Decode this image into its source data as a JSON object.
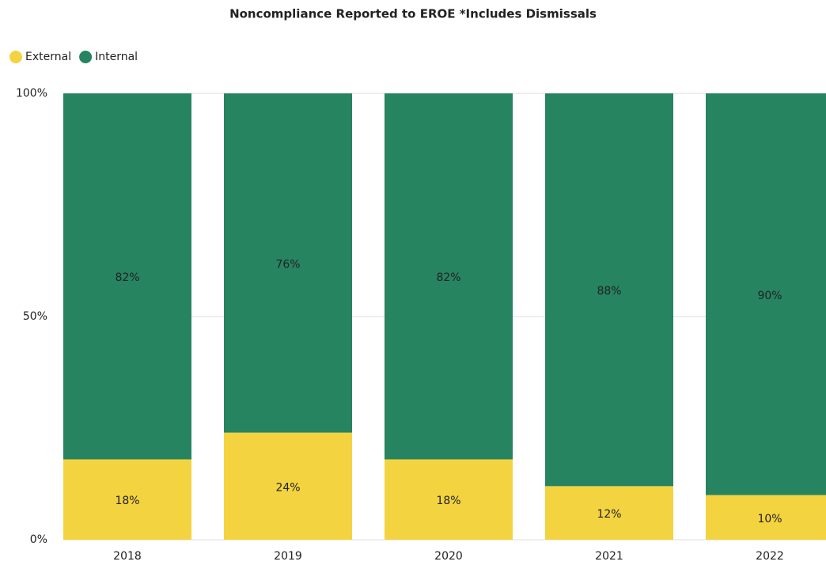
{
  "chart_data": {
    "type": "stacked_bar",
    "title": "Noncompliance Reported to EROE *Includes Dismissals",
    "categories": [
      "2018",
      "2019",
      "2020",
      "2021",
      "2022"
    ],
    "series": [
      {
        "name": "External",
        "color": "#f3d340",
        "values": [
          18,
          24,
          18,
          12,
          10
        ],
        "value_labels": [
          "18%",
          "24%",
          "18%",
          "12%",
          "10%"
        ]
      },
      {
        "name": "Internal",
        "color": "#268461",
        "values": [
          82,
          76,
          82,
          88,
          90
        ],
        "value_labels": [
          "82%",
          "76%",
          "82%",
          "88%",
          "90%"
        ]
      }
    ],
    "ylim": [
      0,
      100
    ],
    "yticks": [
      {
        "value": 0,
        "label": "0%"
      },
      {
        "value": 50,
        "label": "50%"
      },
      {
        "value": 100,
        "label": "100%"
      }
    ],
    "grid": true,
    "legend": "top-left"
  }
}
